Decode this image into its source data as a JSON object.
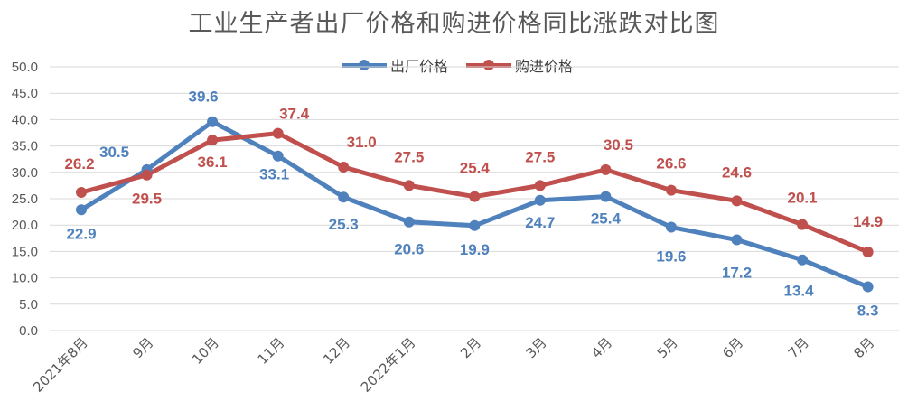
{
  "chart_data": {
    "type": "line",
    "title": "工业生产者出厂价格和购进价格同比涨跌对比图",
    "categories": [
      "2021年8月",
      "9月",
      "10月",
      "11月",
      "12月",
      "2022年1月",
      "2月",
      "3月",
      "4月",
      "5月",
      "6月",
      "7月",
      "8月"
    ],
    "series": [
      {
        "name": "出厂价格",
        "color": "#4F81BD",
        "values": [
          22.9,
          30.5,
          39.6,
          33.1,
          25.3,
          20.6,
          19.9,
          24.7,
          25.4,
          19.6,
          17.2,
          13.4,
          8.3
        ],
        "labels": [
          "22.9",
          "30.5",
          "39.6",
          "33.1",
          "25.3",
          "20.6",
          "19.9",
          "24.7",
          "25.4",
          "19.6",
          "17.2",
          "13.4",
          "8.3"
        ]
      },
      {
        "name": "购进价格",
        "color": "#C0504D",
        "values": [
          26.2,
          29.5,
          36.1,
          37.4,
          31.0,
          27.5,
          25.4,
          27.5,
          30.5,
          26.6,
          24.6,
          20.1,
          14.9
        ],
        "labels": [
          "26.2",
          "29.5",
          "36.1",
          "37.4",
          "31.0",
          "27.5",
          "25.4",
          "27.5",
          "30.5",
          "26.6",
          "24.6",
          "20.1",
          "14.9"
        ]
      }
    ],
    "ylim": [
      0,
      50
    ],
    "yticks": [
      "0.0",
      "5.0",
      "10.0",
      "15.0",
      "20.0",
      "25.0",
      "30.0",
      "35.0",
      "40.0",
      "45.0",
      "50.0"
    ],
    "grid": true,
    "legend": "top-center"
  }
}
